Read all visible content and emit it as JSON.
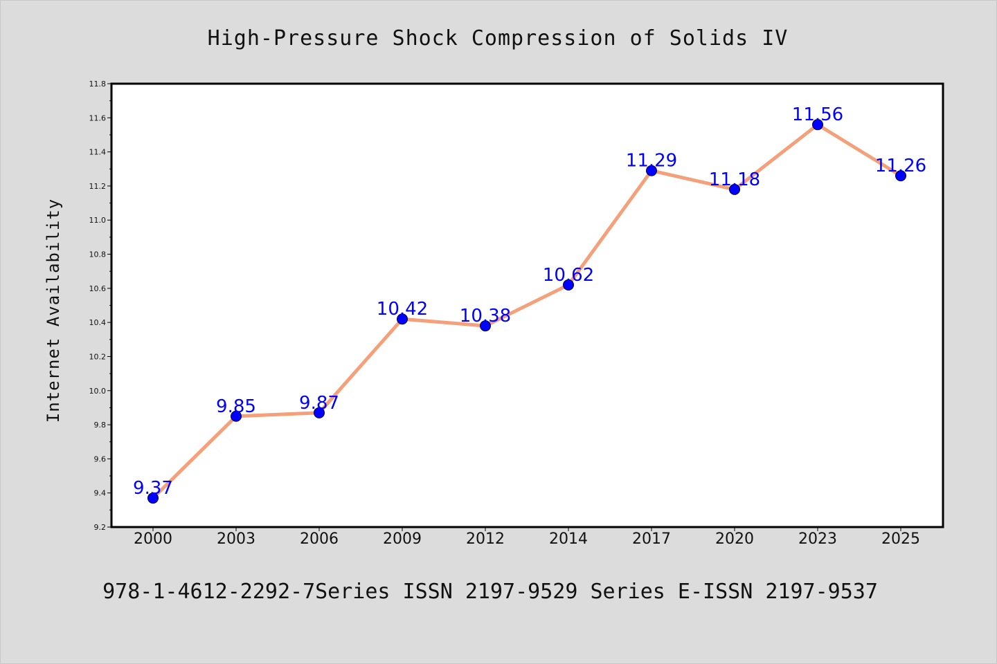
{
  "chart_data": {
    "type": "line",
    "title": "High-Pressure Shock Compression of Solids IV",
    "xlabel": "",
    "ylabel": "Internet Availability",
    "categories": [
      "2000",
      "2003",
      "2006",
      "2009",
      "2012",
      "2014",
      "2017",
      "2020",
      "2023",
      "2025"
    ],
    "series": [
      {
        "values": [
          9.37,
          9.85,
          9.87,
          10.42,
          10.38,
          10.62,
          11.29,
          11.18,
          11.56,
          11.26
        ],
        "data_labels": [
          "9.37",
          "9.85",
          "9.87",
          "10.42",
          "10.38",
          "10.62",
          "11.29",
          "11.18",
          "11.56",
          "11.26"
        ],
        "line_color": "#f4a07a",
        "marker_color": "#0000ff"
      }
    ],
    "ylim": [
      9.2,
      11.8
    ],
    "yticks": [
      "9.2",
      "9.4",
      "9.6",
      "9.8",
      "10.0",
      "10.2",
      "10.4",
      "10.6",
      "10.8",
      "11.0",
      "11.2",
      "11.4",
      "11.6",
      "11.8"
    ],
    "grid": false,
    "legend": "none"
  },
  "caption": "978-1-4612-2292-7Series ISSN 2197-9529 Series E-ISSN 2197-9537",
  "colors": {
    "background": "#dcdcdc",
    "plot_background": "#ffffff",
    "axis": "#000000"
  }
}
